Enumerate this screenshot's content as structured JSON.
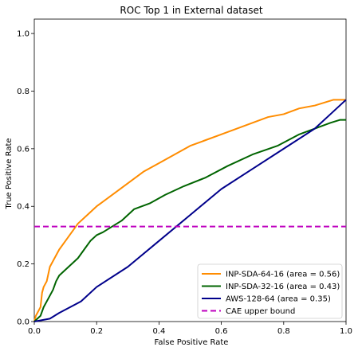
{
  "chart_data": {
    "type": "line",
    "title": "ROC Top 1 in External dataset",
    "xlabel": "False Positive Rate",
    "ylabel": "True Positive Rate",
    "xlim": [
      0,
      1
    ],
    "ylim": [
      0,
      1.05
    ],
    "xticks": [
      "0.0",
      "0.2",
      "0.4",
      "0.6",
      "0.8",
      "1.0"
    ],
    "xtick_values": [
      0,
      0.2,
      0.4,
      0.6,
      0.8,
      1.0
    ],
    "yticks": [
      "0.0",
      "0.2",
      "0.4",
      "0.6",
      "0.8",
      "1.0"
    ],
    "ytick_values": [
      0,
      0.2,
      0.4,
      0.6,
      0.8,
      1.0
    ],
    "grid": false,
    "legend_position": "lower-right",
    "series": [
      {
        "name": "INP-SDA-64-16 (area = 0.56)",
        "color": "#ff8c00",
        "dashed": false,
        "x": [
          0,
          0.005,
          0.01,
          0.015,
          0.02,
          0.025,
          0.03,
          0.04,
          0.05,
          0.06,
          0.08,
          0.1,
          0.12,
          0.14,
          0.16,
          0.18,
          0.2,
          0.25,
          0.3,
          0.35,
          0.4,
          0.45,
          0.5,
          0.55,
          0.6,
          0.65,
          0.7,
          0.75,
          0.8,
          0.85,
          0.9,
          0.93,
          0.96,
          0.98,
          1.0
        ],
        "y": [
          0,
          0.02,
          0.03,
          0.04,
          0.05,
          0.1,
          0.12,
          0.14,
          0.19,
          0.21,
          0.25,
          0.28,
          0.31,
          0.34,
          0.36,
          0.38,
          0.4,
          0.44,
          0.48,
          0.52,
          0.55,
          0.58,
          0.61,
          0.63,
          0.65,
          0.67,
          0.69,
          0.71,
          0.72,
          0.74,
          0.75,
          0.76,
          0.77,
          0.77,
          0.77
        ]
      },
      {
        "name": "INP-SDA-32-16 (area = 0.43)",
        "color": "#006400",
        "dashed": false,
        "x": [
          0,
          0.01,
          0.02,
          0.03,
          0.04,
          0.05,
          0.06,
          0.07,
          0.08,
          0.1,
          0.12,
          0.14,
          0.16,
          0.18,
          0.2,
          0.22,
          0.25,
          0.28,
          0.32,
          0.37,
          0.42,
          0.48,
          0.55,
          0.62,
          0.7,
          0.78,
          0.85,
          0.9,
          0.95,
          0.98,
          1.0
        ],
        "y": [
          0,
          0.01,
          0.02,
          0.05,
          0.07,
          0.09,
          0.11,
          0.14,
          0.16,
          0.18,
          0.2,
          0.22,
          0.25,
          0.28,
          0.3,
          0.31,
          0.33,
          0.35,
          0.39,
          0.41,
          0.44,
          0.47,
          0.5,
          0.54,
          0.58,
          0.61,
          0.65,
          0.67,
          0.69,
          0.7,
          0.7
        ]
      },
      {
        "name": "AWS-128-64 (area = 0.35)",
        "color": "#00008b",
        "dashed": false,
        "x": [
          0,
          0.05,
          0.08,
          0.15,
          0.2,
          0.3,
          0.4,
          0.5,
          0.6,
          0.7,
          0.8,
          0.9,
          0.95,
          0.97,
          0.99,
          1.0
        ],
        "y": [
          0,
          0.01,
          0.03,
          0.07,
          0.12,
          0.19,
          0.28,
          0.37,
          0.46,
          0.53,
          0.6,
          0.67,
          0.72,
          0.74,
          0.76,
          0.77
        ]
      },
      {
        "name": "CAE upper bound",
        "color": "#bf00bf",
        "dashed": true,
        "x": [
          0,
          1
        ],
        "y": [
          0.33,
          0.33
        ]
      }
    ]
  }
}
